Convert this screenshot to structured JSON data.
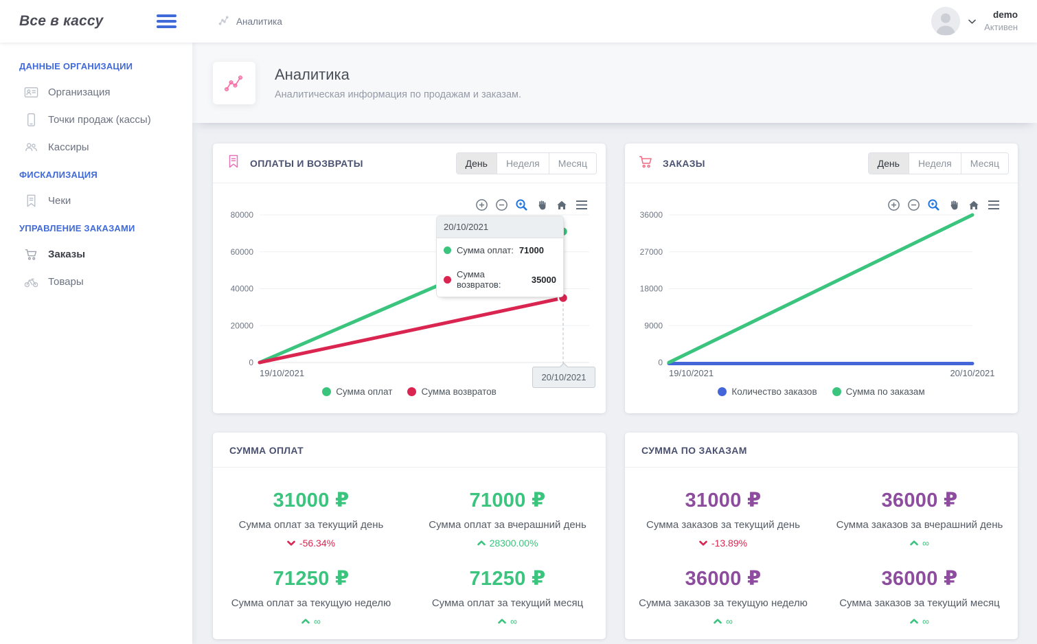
{
  "app": {
    "logo": "Все в кассу"
  },
  "header": {
    "breadcrumb": "Аналитика",
    "user": {
      "name": "demo",
      "status": "Активен",
      "avatar_icon": "person-silhouette",
      "chevron_icon": "chevron-down"
    }
  },
  "sidebar": {
    "sections": [
      {
        "label": "ДАННЫЕ ОРГАНИЗАЦИИ",
        "items": [
          {
            "label": "Организация",
            "icon": "id-card-icon"
          },
          {
            "label": "Точки продаж (кассы)",
            "icon": "phone-icon"
          },
          {
            "label": "Кассиры",
            "icon": "users-icon"
          }
        ]
      },
      {
        "label": "ФИСКАЛИЗАЦИЯ",
        "items": [
          {
            "label": "Чеки",
            "icon": "receipt-icon"
          }
        ]
      },
      {
        "label": "УПРАВЛЕНИЕ ЗАКАЗАМИ",
        "items": [
          {
            "label": "Заказы",
            "icon": "cart-icon",
            "active": true
          },
          {
            "label": "Товары",
            "icon": "bike-icon"
          }
        ]
      }
    ]
  },
  "page": {
    "title": "Аналитика",
    "subtitle": "Аналитическая информация по продажам и заказам."
  },
  "period_tabs": [
    "День",
    "Неделя",
    "Месяц"
  ],
  "active_tab": "День",
  "chart_toolbar_icons": [
    "zoom-in",
    "zoom-out",
    "selection-zoom",
    "pan",
    "home",
    "menu"
  ],
  "colors": {
    "accent_blue": "#3f6ad8",
    "green": "#3ac47d",
    "red": "#d92550",
    "purple": "#8d4c9e",
    "pink": "#ee6ca8"
  },
  "charts": [
    {
      "title": "ОПЛАТЫ И ВОЗВРАТЫ",
      "icon": "bookmark-icon"
    },
    {
      "title": "ЗАКАЗЫ",
      "icon": "cart-icon"
    }
  ],
  "chart_data": [
    {
      "type": "line",
      "title": "ОПЛАТЫ И ВОЗВРАТЫ",
      "x": [
        "19/10/2021",
        "20/10/2021"
      ],
      "series": [
        {
          "name": "Сумма оплат",
          "color": "#3ac47d",
          "values": [
            0,
            71000
          ]
        },
        {
          "name": "Сумма возвратов",
          "color": "#d92550",
          "values": [
            0,
            35000
          ]
        }
      ],
      "ylim": [
        0,
        80000
      ],
      "yticks": [
        0,
        20000,
        40000,
        60000,
        80000
      ],
      "grid": true,
      "legend_position": "bottom",
      "tooltip": {
        "date": "20/10/2021",
        "rows": [
          {
            "label": "Сумма оплат:",
            "value": "71000"
          },
          {
            "label": "Сумма возвратов:",
            "value": "35000"
          }
        ]
      },
      "crosshair_label": "20/10/2021"
    },
    {
      "type": "line",
      "title": "ЗАКАЗЫ",
      "x": [
        "19/10/2021",
        "20/10/2021"
      ],
      "series": [
        {
          "name": "Количество заказов",
          "color": "#4466d9",
          "values": [
            0,
            0
          ]
        },
        {
          "name": "Сумма по заказам",
          "color": "#3ac47d",
          "values": [
            0,
            36000
          ]
        }
      ],
      "ylim": [
        0,
        36000
      ],
      "yticks": [
        0,
        9000,
        18000,
        27000,
        36000
      ],
      "grid": true,
      "legend_position": "bottom"
    }
  ],
  "stats_cards": [
    {
      "title": "СУММА ОПЛАТ",
      "value_style": "color:#3ac47d",
      "stats": [
        {
          "value": "31000 ₽",
          "label": "Сумма оплат за текущий день",
          "change": "-56.34%",
          "direction": "down"
        },
        {
          "value": "71000 ₽",
          "label": "Сумма оплат за вчерашний день",
          "change": "28300.00%",
          "direction": "up"
        },
        {
          "value": "71250 ₽",
          "label": "Сумма оплат за текущую неделю",
          "change": "∞",
          "direction": "up"
        },
        {
          "value": "71250 ₽",
          "label": "Сумма оплат за текущий месяц",
          "change": "∞",
          "direction": "up"
        }
      ]
    },
    {
      "title": "СУММА ПО ЗАКАЗАМ",
      "value_style": "color:#8d4c9e",
      "stats": [
        {
          "value": "31000 ₽",
          "label": "Сумма заказов за текущий день",
          "change": "-13.89%",
          "direction": "down"
        },
        {
          "value": "36000 ₽",
          "label": "Сумма заказов за вчерашний день",
          "change": "∞",
          "direction": "up"
        },
        {
          "value": "36000 ₽",
          "label": "Сумма заказов за текущую неделю",
          "change": "∞",
          "direction": "up"
        },
        {
          "value": "36000 ₽",
          "label": "Сумма заказов за текущий месяц",
          "change": "∞",
          "direction": "up"
        }
      ]
    }
  ]
}
